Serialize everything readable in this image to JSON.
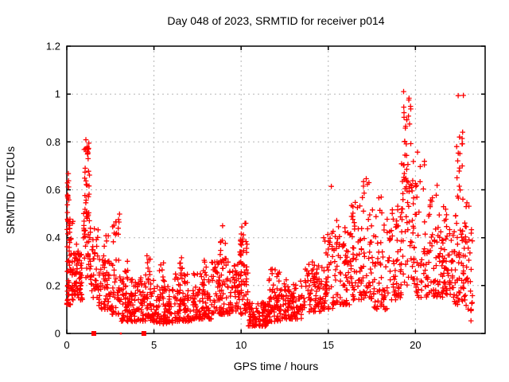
{
  "window": {
    "background": "#ffffff"
  },
  "chart_data": {
    "type": "scatter",
    "title": "Day 048 of 2023, SRMTID for receiver p014",
    "xlabel": "GPS time / hours",
    "ylabel": "SRMTID / TECUs",
    "xlim": [
      0,
      24
    ],
    "ylim": [
      0,
      1.2
    ],
    "xticks": [
      0,
      5,
      10,
      15,
      20
    ],
    "xtick_labels": [
      "0",
      "5",
      "10",
      "15",
      "20"
    ],
    "yticks": [
      0,
      0.2,
      0.4,
      0.6,
      0.8,
      1,
      1.2
    ],
    "ytick_labels": [
      "0",
      "0.2",
      "0.4",
      "0.6",
      "0.8",
      "1",
      "1.2"
    ],
    "grid": true,
    "legend": "none",
    "marker": "plus",
    "marker_color": "#ff0000",
    "grid_color": "#b5b5b5",
    "axis_color": "#000000",
    "seed": 7,
    "series_name": "SRMTID",
    "clusters_note": "each cluster = [x_start_hours, x_end_hours, y_min_TECUs, y_max_TECUs, point_count, low_bias_exponent]",
    "clusters": [
      [
        0.0,
        0.25,
        0.12,
        0.48,
        55,
        1.5
      ],
      [
        0.02,
        0.12,
        0.45,
        0.67,
        12,
        1.0
      ],
      [
        0.25,
        0.9,
        0.14,
        0.34,
        75,
        1.7
      ],
      [
        0.3,
        0.8,
        0.3,
        0.47,
        10,
        1.0
      ],
      [
        0.95,
        1.35,
        0.22,
        0.65,
        45,
        1.2
      ],
      [
        1.0,
        1.3,
        0.6,
        0.82,
        20,
        0.8
      ],
      [
        1.35,
        1.8,
        0.15,
        0.45,
        35,
        1.5
      ],
      [
        1.8,
        2.6,
        0.1,
        0.32,
        60,
        1.8
      ],
      [
        2.0,
        2.4,
        0.3,
        0.43,
        6,
        1.0
      ],
      [
        2.6,
        3.05,
        0.08,
        0.5,
        45,
        1.8
      ],
      [
        3.05,
        4.2,
        0.05,
        0.23,
        95,
        1.6
      ],
      [
        3.3,
        3.5,
        0.2,
        0.31,
        6,
        1.0
      ],
      [
        4.2,
        5.0,
        0.05,
        0.25,
        70,
        1.7
      ],
      [
        4.55,
        4.8,
        0.22,
        0.34,
        8,
        1.0
      ],
      [
        5.0,
        6.2,
        0.04,
        0.2,
        95,
        1.5
      ],
      [
        5.3,
        5.6,
        0.18,
        0.3,
        8,
        1.0
      ],
      [
        6.2,
        7.2,
        0.05,
        0.25,
        85,
        1.6
      ],
      [
        6.4,
        6.7,
        0.22,
        0.32,
        8,
        1.0
      ],
      [
        7.2,
        8.3,
        0.06,
        0.25,
        90,
        1.6
      ],
      [
        7.7,
        8.0,
        0.2,
        0.33,
        8,
        1.0
      ],
      [
        8.3,
        9.4,
        0.08,
        0.3,
        90,
        1.5
      ],
      [
        8.8,
        9.2,
        0.28,
        0.47,
        14,
        1.2
      ],
      [
        9.4,
        10.4,
        0.08,
        0.3,
        85,
        1.4
      ],
      [
        9.9,
        10.35,
        0.28,
        0.47,
        25,
        1.1
      ],
      [
        10.4,
        11.6,
        0.03,
        0.13,
        95,
        1.3
      ],
      [
        11.6,
        12.3,
        0.05,
        0.27,
        70,
        1.6
      ],
      [
        12.3,
        13.6,
        0.06,
        0.23,
        95,
        1.5
      ],
      [
        13.6,
        14.6,
        0.09,
        0.3,
        75,
        1.4
      ],
      [
        14.6,
        15.3,
        0.1,
        0.45,
        55,
        1.6
      ],
      [
        15.15,
        15.25,
        0.6,
        0.64,
        1,
        1.0
      ],
      [
        15.3,
        16.3,
        0.12,
        0.48,
        80,
        1.7
      ],
      [
        16.3,
        17.4,
        0.14,
        0.55,
        80,
        1.6
      ],
      [
        16.9,
        17.35,
        0.55,
        0.65,
        7,
        1.0
      ],
      [
        17.4,
        18.4,
        0.1,
        0.52,
        70,
        1.6
      ],
      [
        17.9,
        18.1,
        0.54,
        0.58,
        2,
        1.0
      ],
      [
        18.4,
        19.2,
        0.14,
        0.55,
        60,
        1.5
      ],
      [
        19.2,
        19.9,
        0.2,
        0.8,
        60,
        0.9
      ],
      [
        19.3,
        19.75,
        0.78,
        1.02,
        18,
        1.0
      ],
      [
        19.9,
        21.0,
        0.15,
        0.6,
        70,
        1.5
      ],
      [
        20.0,
        20.6,
        0.6,
        0.78,
        9,
        1.0
      ],
      [
        21.0,
        22.2,
        0.15,
        0.45,
        95,
        1.4
      ],
      [
        21.1,
        21.9,
        0.45,
        0.68,
        8,
        1.0
      ],
      [
        22.2,
        22.9,
        0.12,
        0.5,
        60,
        1.3
      ],
      [
        22.35,
        22.75,
        0.55,
        1.0,
        20,
        1.0
      ],
      [
        22.9,
        23.3,
        0.05,
        0.55,
        28,
        1.3
      ]
    ],
    "zero_markers": {
      "shape": "filled-square",
      "color": "#ff0000",
      "y": 0,
      "points": [
        {
          "x": 1.55,
          "size": 6
        },
        {
          "x": 3.1,
          "size": 2.5
        },
        {
          "x": 4.42,
          "size": 6
        }
      ]
    }
  }
}
